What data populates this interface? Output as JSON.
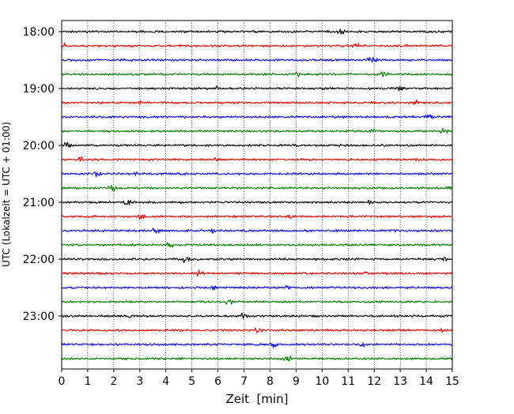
{
  "chart_data": {
    "type": "line",
    "subtype": "helicorder",
    "title": "",
    "xlabel": "Zeit  [min]",
    "ylabel": "UTC (Lokalzeit = UTC + 01:00)",
    "xlim": [
      0,
      15
    ],
    "x_ticks": [
      "0",
      "1",
      "2",
      "3",
      "4",
      "5",
      "6",
      "7",
      "8",
      "9",
      "10",
      "11",
      "12",
      "13",
      "14",
      "15"
    ],
    "y_ticks": [
      "18:00",
      "19:00",
      "20:00",
      "21:00",
      "22:00",
      "23:00"
    ],
    "trace_interval_minutes": 15,
    "trace_start_time": "18:00",
    "trace_count": 24,
    "trace_colors": [
      "#000000",
      "#ff0000",
      "#0000ff",
      "#008000"
    ],
    "grid": "vertical dotted lines at each minute",
    "legend": "none"
  }
}
